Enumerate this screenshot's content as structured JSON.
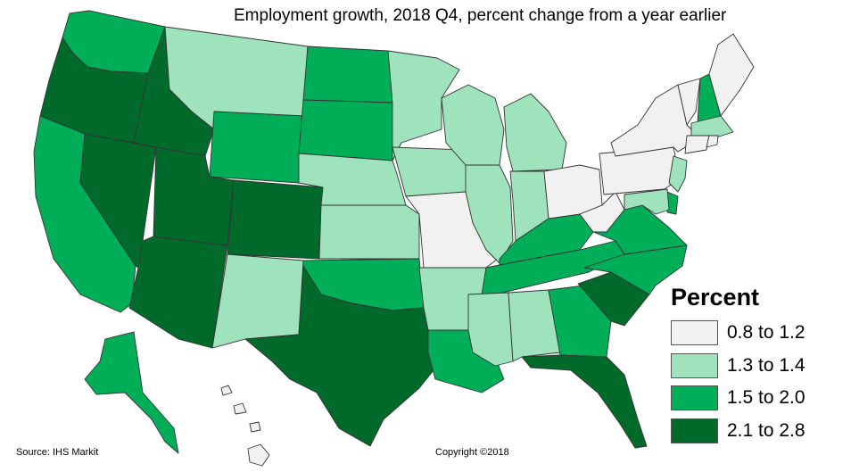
{
  "title": "Employment growth, 2018 Q4, percent change from a year earlier",
  "legend": {
    "title": "Percent",
    "items": [
      {
        "label": "0.8 to 1.2",
        "color": "#f1f1f1"
      },
      {
        "label": "1.3 to 1.4",
        "color": "#9ee3bc"
      },
      {
        "label": "1.5 to 2.0",
        "color": "#00ae58"
      },
      {
        "label": "2.1 to 2.8",
        "color": "#006a2b"
      }
    ]
  },
  "states": [
    {
      "state": "WA",
      "category": 3
    },
    {
      "state": "OR",
      "category": 4
    },
    {
      "state": "CA",
      "category": 3
    },
    {
      "state": "NV",
      "category": 4
    },
    {
      "state": "ID",
      "category": 4
    },
    {
      "state": "MT",
      "category": 2
    },
    {
      "state": "WY",
      "category": 3
    },
    {
      "state": "UT",
      "category": 4
    },
    {
      "state": "AZ",
      "category": 4
    },
    {
      "state": "CO",
      "category": 4
    },
    {
      "state": "NM",
      "category": 2
    },
    {
      "state": "ND",
      "category": 3
    },
    {
      "state": "SD",
      "category": 3
    },
    {
      "state": "NE",
      "category": 2
    },
    {
      "state": "KS",
      "category": 2
    },
    {
      "state": "OK",
      "category": 3
    },
    {
      "state": "TX",
      "category": 4
    },
    {
      "state": "MN",
      "category": 2
    },
    {
      "state": "IA",
      "category": 2
    },
    {
      "state": "MO",
      "category": 1
    },
    {
      "state": "AR",
      "category": 2
    },
    {
      "state": "LA",
      "category": 3
    },
    {
      "state": "WI",
      "category": 2
    },
    {
      "state": "IL",
      "category": 2
    },
    {
      "state": "MI",
      "category": 2
    },
    {
      "state": "IN",
      "category": 2
    },
    {
      "state": "KY",
      "category": 3
    },
    {
      "state": "TN",
      "category": 3
    },
    {
      "state": "MS",
      "category": 2
    },
    {
      "state": "AL",
      "category": 2
    },
    {
      "state": "GA",
      "category": 3
    },
    {
      "state": "FL",
      "category": 4
    },
    {
      "state": "SC",
      "category": 4
    },
    {
      "state": "NC",
      "category": 3
    },
    {
      "state": "OH",
      "category": 1
    },
    {
      "state": "WV",
      "category": 1
    },
    {
      "state": "VA",
      "category": 3
    },
    {
      "state": "PA",
      "category": 1
    },
    {
      "state": "NY",
      "category": 1
    },
    {
      "state": "VT",
      "category": 1
    },
    {
      "state": "NH",
      "category": 3
    },
    {
      "state": "ME",
      "category": 1
    },
    {
      "state": "MA",
      "category": 2
    },
    {
      "state": "CT",
      "category": 1
    },
    {
      "state": "RI",
      "category": 1
    },
    {
      "state": "NJ",
      "category": 2
    },
    {
      "state": "DE",
      "category": 3
    },
    {
      "state": "MD",
      "category": 2
    },
    {
      "state": "AK",
      "category": 3
    },
    {
      "state": "HI",
      "category": 1
    }
  ],
  "source": "Source: IHS Markit",
  "copyright": "Copyright ©2018"
}
